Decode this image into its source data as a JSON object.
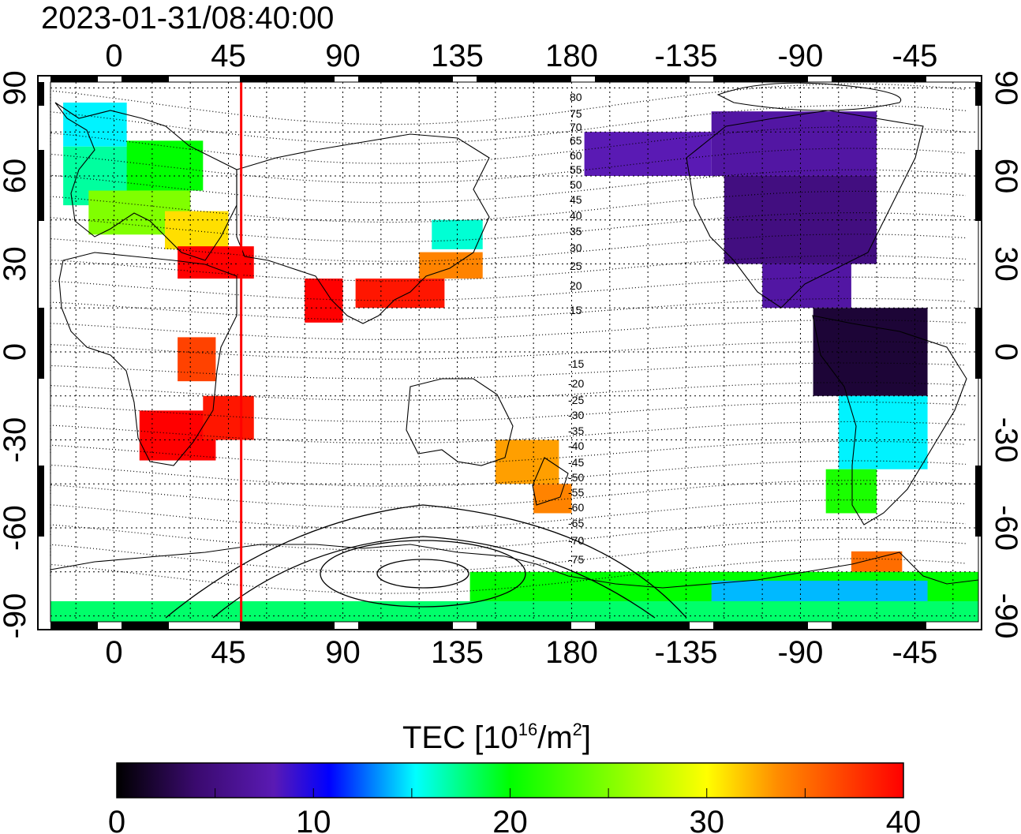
{
  "title": "2023-01-31/08:40:00",
  "map": {
    "lon_range": [
      -25,
      340
    ],
    "lat_range": [
      -92,
      92
    ],
    "top_lon_ticks": [
      "0",
      "45",
      "90",
      "135",
      "180",
      "-135",
      "-90",
      "-45"
    ],
    "bottom_lon_ticks": [
      "0",
      "45",
      "90",
      "135",
      "180",
      "-135",
      "-90",
      "-45"
    ],
    "lon_tick_values": [
      0,
      45,
      90,
      135,
      180,
      225,
      270,
      315
    ],
    "lat_ticks": [
      "90",
      "60",
      "30",
      "0",
      "-30",
      "-60",
      "-90"
    ],
    "lat_tick_values": [
      90,
      60,
      30,
      0,
      -30,
      -60,
      -90
    ],
    "grid": "dotted every 15 degrees",
    "terminator_lon": 50,
    "terminator_color": "#ff0000",
    "mlat_labels_north": [
      "80",
      "75",
      "70",
      "65",
      "60",
      "55",
      "50",
      "45",
      "40",
      "35",
      "30",
      "25",
      "20",
      "15"
    ],
    "mlat_labels_south": [
      "-15",
      "-20",
      "-25",
      "-30",
      "-35",
      "-40",
      "-45",
      "-50",
      "-55",
      "-60",
      "-65",
      "-70",
      "-75"
    ]
  },
  "colorbar": {
    "label_prefix": "TEC  [10",
    "label_exp1": "16",
    "label_mid": "/m",
    "label_exp2": "2",
    "label_suffix": "]",
    "ticks": [
      "0",
      "10",
      "20",
      "30",
      "40"
    ],
    "range": [
      0,
      40
    ],
    "stops": [
      "#000000",
      "#3a0a6e",
      "#5a1ab4",
      "#0000ff",
      "#00ffff",
      "#00ff00",
      "#ffff00",
      "#ff8c00",
      "#ff0000"
    ]
  }
}
